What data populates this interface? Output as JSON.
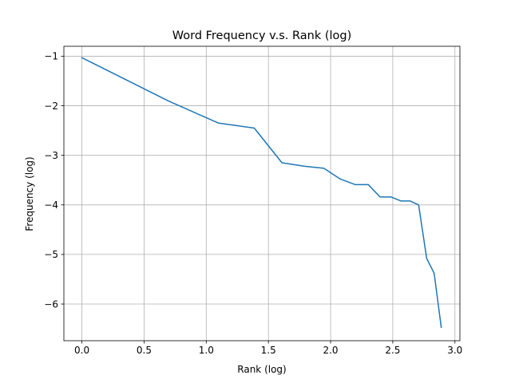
{
  "chart_data": {
    "type": "line",
    "title": "Word Frequency v.s. Rank (log)",
    "xlabel": "Rank (log)",
    "ylabel": "Frequency (log)",
    "xlim": [
      -0.145,
      3.04
    ],
    "ylim": [
      -6.74,
      -0.8
    ],
    "x_ticks": [
      0.0,
      0.5,
      1.0,
      1.5,
      2.0,
      2.5,
      3.0
    ],
    "x_tick_labels": [
      "0.0",
      "0.5",
      "1.0",
      "1.5",
      "2.0",
      "2.5",
      "3.0"
    ],
    "y_ticks": [
      -1,
      -2,
      -3,
      -4,
      -5,
      -6
    ],
    "y_tick_labels": [
      "−1",
      "−2",
      "−3",
      "−4",
      "−5",
      "−6"
    ],
    "grid": true,
    "series": [
      {
        "color": "#1f77b4",
        "x": [
          0.0,
          0.693,
          1.099,
          1.386,
          1.609,
          1.792,
          1.946,
          2.079,
          2.197,
          2.303,
          2.398,
          2.485,
          2.565,
          2.639,
          2.708,
          2.773,
          2.833,
          2.89
        ],
        "y": [
          -1.03,
          -1.9,
          -2.35,
          -2.45,
          -3.15,
          -3.22,
          -3.26,
          -3.48,
          -3.59,
          -3.59,
          -3.84,
          -3.84,
          -3.92,
          -3.92,
          -4.0,
          -5.08,
          -5.38,
          -6.47
        ]
      }
    ]
  }
}
